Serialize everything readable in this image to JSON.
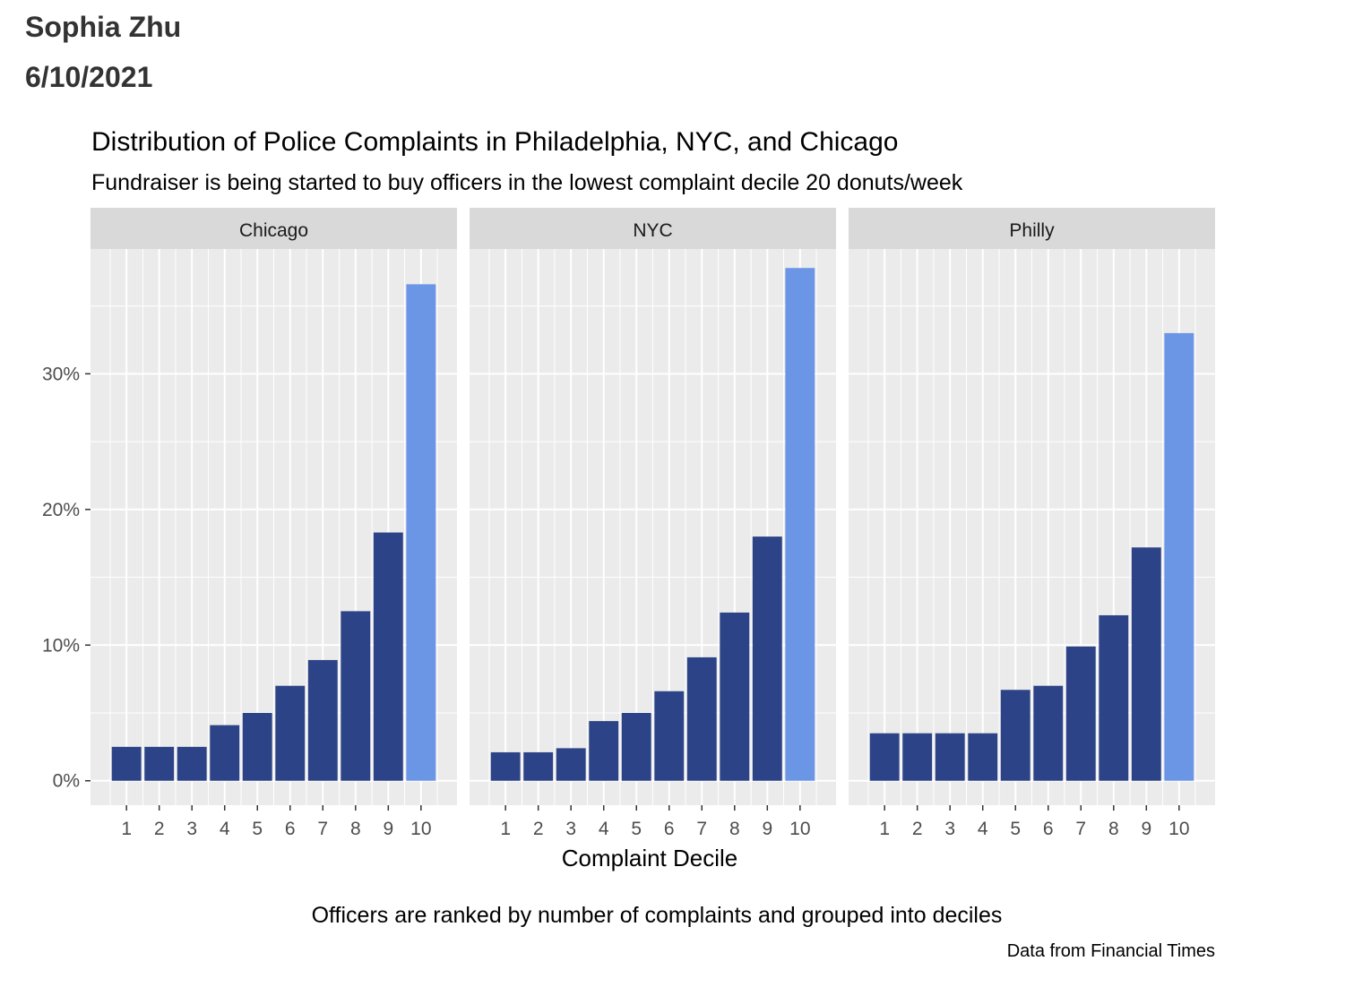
{
  "header": {
    "author": "Sophia Zhu",
    "date": "6/10/2021"
  },
  "chart_data": {
    "type": "bar",
    "title": "Distribution of Police Complaints in Philadelphia, NYC, and Chicago",
    "subtitle": "Fundraiser is being started to buy officers in the lowest complaint decile 20 donuts/week",
    "xlabel": "Complaint Decile",
    "ylabel": "",
    "caption_main": "Officers are ranked by number of complaints and grouped into deciles",
    "caption_source": "Data from Financial Times",
    "categories": [
      "1",
      "2",
      "3",
      "4",
      "5",
      "6",
      "7",
      "8",
      "9",
      "10"
    ],
    "y_ticks": [
      {
        "value": 0,
        "label": "0%"
      },
      {
        "value": 10,
        "label": "10%"
      },
      {
        "value": 20,
        "label": "20%"
      },
      {
        "value": 30,
        "label": "30%"
      }
    ],
    "ylim": [
      -1.8,
      39.2
    ],
    "grid": true,
    "colors": {
      "bar": "#2c4387",
      "highlight": "#6b96e6",
      "panel_bg": "#ebebeb",
      "strip_bg": "#d9d9d9",
      "grid": "#ffffff"
    },
    "highlight_category": "10",
    "facets": [
      {
        "name": "Chicago",
        "values": [
          2.5,
          2.5,
          2.5,
          4.1,
          5.0,
          7.0,
          8.9,
          12.5,
          18.3,
          36.6
        ]
      },
      {
        "name": "NYC",
        "values": [
          2.1,
          2.1,
          2.4,
          4.4,
          5.0,
          6.6,
          9.1,
          12.4,
          18.0,
          37.8
        ]
      },
      {
        "name": "Philly",
        "values": [
          3.5,
          3.5,
          3.5,
          3.5,
          6.7,
          7.0,
          9.9,
          12.2,
          17.2,
          33.0
        ]
      }
    ]
  }
}
